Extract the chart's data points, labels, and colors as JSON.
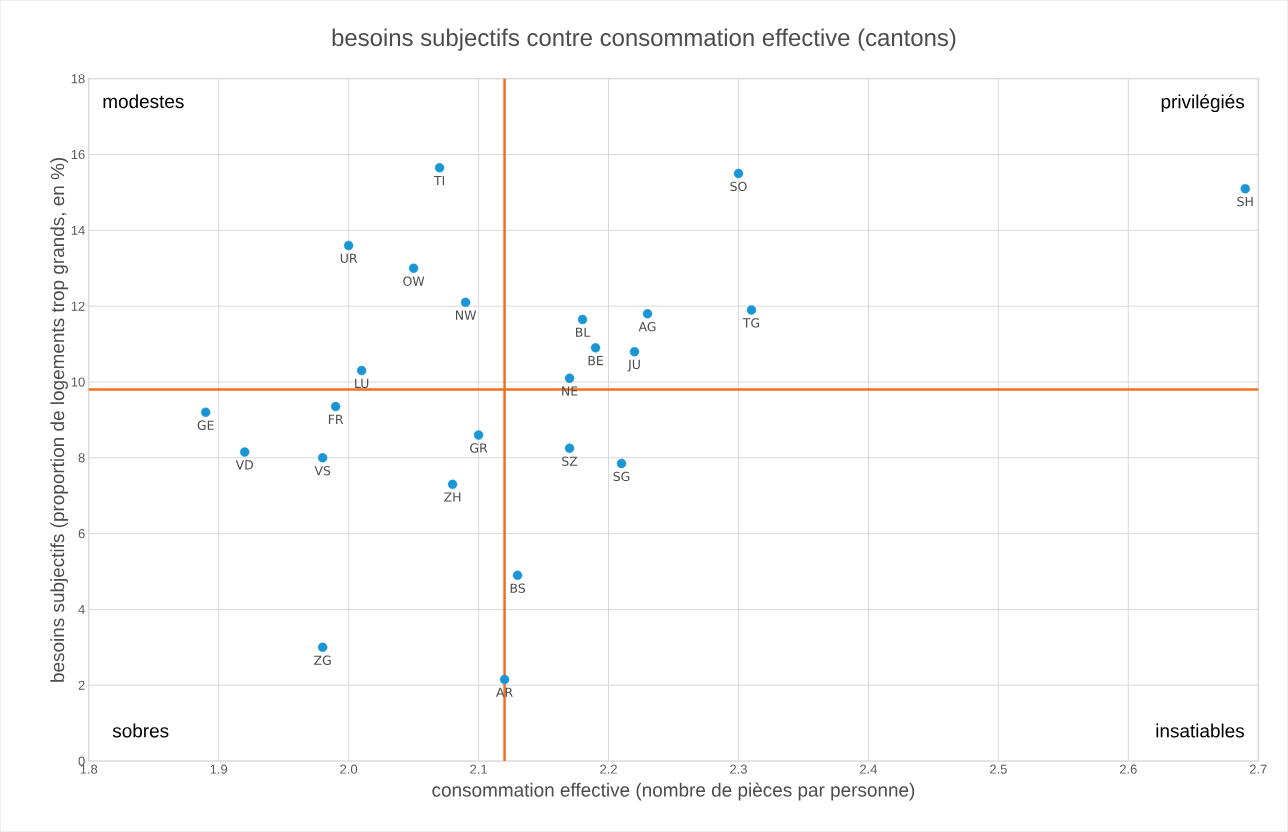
{
  "chart_data": {
    "type": "scatter",
    "title": "besoins subjectifs contre consommation effective (cantons)",
    "xlabel": "consommation effective (nombre de pièces par personne)",
    "ylabel": "besoins subjectifs (proportion de logements trop grands, en %)",
    "xlim": [
      1.8,
      2.7
    ],
    "xticks": [
      1.8,
      1.9,
      {
        "value": 2.0,
        "label": "2.0"
      },
      2.1,
      2.2,
      2.3,
      2.4,
      2.5,
      2.6,
      2.7
    ],
    "ylim": [
      0,
      18
    ],
    "yticks": [
      0,
      2,
      4,
      6,
      8,
      10,
      12,
      14,
      16,
      18
    ],
    "grid": true,
    "marker": "circle",
    "series": [
      {
        "color": "#1a96d4",
        "x": [
          2.07,
          2.3,
          2.69,
          2.0,
          2.05,
          2.09,
          2.18,
          2.23,
          2.31,
          2.19,
          2.22,
          2.01,
          2.17,
          1.89,
          1.99,
          1.92,
          1.98,
          2.1,
          2.17,
          2.21,
          2.08,
          2.13,
          1.98,
          2.12
        ],
        "values": [
          15.65,
          15.5,
          15.1,
          13.6,
          13.0,
          12.1,
          11.65,
          11.8,
          11.9,
          10.9,
          10.8,
          10.3,
          10.1,
          9.2,
          9.35,
          8.15,
          8.0,
          8.6,
          8.25,
          7.85,
          7.3,
          4.9,
          3.0,
          2.15
        ]
      }
    ],
    "ref_lines": [
      {
        "axis": "x",
        "value": 2.12,
        "color": "#f07020"
      },
      {
        "axis": "y",
        "value": 9.8,
        "color": "#f07020"
      }
    ],
    "annotations": [
      "modestes",
      "privilégiés",
      "sobres",
      "insatiables",
      {
        "text": "TI",
        "x": 2.07,
        "y": 15.65
      },
      {
        "text": "SO",
        "x": 2.3,
        "y": 15.5
      },
      {
        "text": "SH",
        "x": 2.69,
        "y": 15.1
      },
      {
        "text": "UR",
        "x": 2.0,
        "y": 13.6
      },
      {
        "text": "OW",
        "x": 2.05,
        "y": 13.0
      },
      {
        "text": "NW",
        "x": 2.09,
        "y": 12.1
      },
      {
        "text": "BL",
        "x": 2.18,
        "y": 11.65
      },
      {
        "text": "AG",
        "x": 2.23,
        "y": 11.8
      },
      {
        "text": "TG",
        "x": 2.31,
        "y": 11.9
      },
      {
        "text": "BE",
        "x": 2.19,
        "y": 10.9
      },
      {
        "text": "JU",
        "x": 2.22,
        "y": 10.8
      },
      {
        "text": "LU",
        "x": 2.01,
        "y": 10.3
      },
      {
        "text": "NE",
        "x": 2.17,
        "y": 10.1
      },
      {
        "text": "GE",
        "x": 1.89,
        "y": 9.2
      },
      {
        "text": "FR",
        "x": 1.99,
        "y": 9.35
      },
      {
        "text": "VD",
        "x": 1.92,
        "y": 8.15
      },
      {
        "text": "VS",
        "x": 1.98,
        "y": 8.0
      },
      {
        "text": "GR",
        "x": 2.1,
        "y": 8.6
      },
      {
        "text": "SZ",
        "x": 2.17,
        "y": 8.25
      },
      {
        "text": "SG",
        "x": 2.21,
        "y": 7.85
      },
      {
        "text": "ZH",
        "x": 2.08,
        "y": 7.3
      },
      {
        "text": "BS",
        "x": 2.13,
        "y": 4.9
      },
      {
        "text": "ZG",
        "x": 1.98,
        "y": 3.0
      },
      {
        "text": "AR",
        "x": 2.12,
        "y": 2.15
      }
    ]
  }
}
